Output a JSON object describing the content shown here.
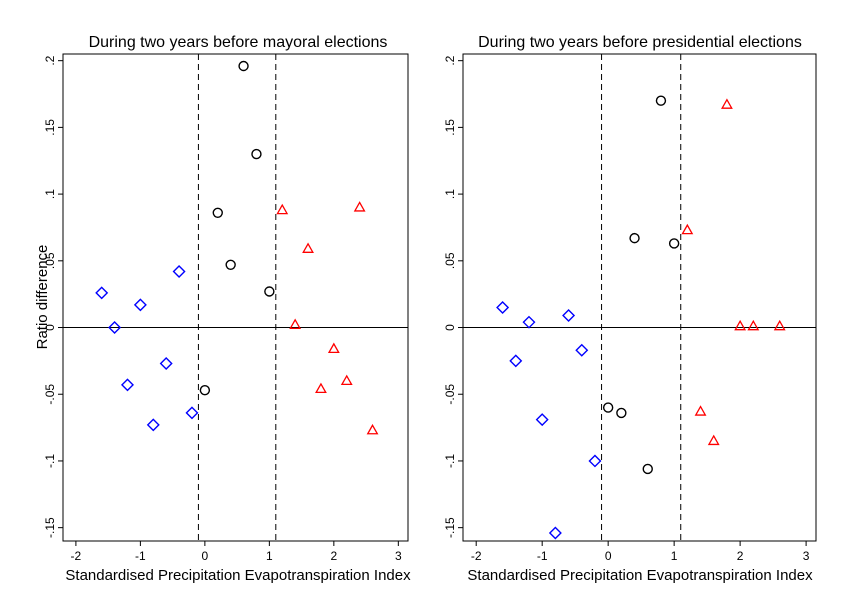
{
  "chart_data": [
    {
      "type": "scatter",
      "title": "During two years before mayoral elections",
      "xlabel": "Standardised Precipitation Evapotranspiration Index",
      "ylabel": "Ratio difference",
      "xlim": [
        -2.2,
        3.15
      ],
      "ylim": [
        -0.16,
        0.205
      ],
      "x_ticks": [
        -2,
        -1,
        0,
        1,
        2,
        3
      ],
      "x_tick_labels": [
        "-2",
        "-1",
        "0",
        "1",
        "2",
        "3"
      ],
      "y_ticks": [
        0.2,
        0.15,
        0.1,
        0.05,
        0,
        -0.05,
        -0.1,
        -0.15
      ],
      "y_tick_labels": [
        ".2",
        ".15",
        ".1",
        ".05",
        "0",
        "-.05",
        "-.1",
        "-.15"
      ],
      "hline": 0,
      "vlines": [
        -0.1,
        1.1
      ],
      "grid": false,
      "legend": "none",
      "series": [
        {
          "marker": "diamond",
          "color": "#0000ff",
          "points": [
            {
              "x": -1.6,
              "y": 0.026
            },
            {
              "x": -1.4,
              "y": 0.0
            },
            {
              "x": -1.2,
              "y": -0.043
            },
            {
              "x": -1.0,
              "y": 0.017
            },
            {
              "x": -0.8,
              "y": -0.073
            },
            {
              "x": -0.6,
              "y": -0.027
            },
            {
              "x": -0.4,
              "y": 0.042
            },
            {
              "x": -0.2,
              "y": -0.064
            }
          ]
        },
        {
          "marker": "circle",
          "color": "#000000",
          "points": [
            {
              "x": 0.0,
              "y": -0.047
            },
            {
              "x": 0.2,
              "y": 0.086
            },
            {
              "x": 0.4,
              "y": 0.047
            },
            {
              "x": 0.6,
              "y": 0.196
            },
            {
              "x": 0.8,
              "y": 0.13
            },
            {
              "x": 1.0,
              "y": 0.027
            }
          ]
        },
        {
          "marker": "triangle",
          "color": "#ff0000",
          "points": [
            {
              "x": 1.2,
              "y": 0.088
            },
            {
              "x": 1.4,
              "y": 0.002
            },
            {
              "x": 1.6,
              "y": 0.059
            },
            {
              "x": 1.8,
              "y": -0.046
            },
            {
              "x": 2.0,
              "y": -0.016
            },
            {
              "x": 2.2,
              "y": -0.04
            },
            {
              "x": 2.4,
              "y": 0.09
            },
            {
              "x": 2.6,
              "y": -0.077
            }
          ]
        }
      ]
    },
    {
      "type": "scatter",
      "title": "During two years before presidential elections",
      "xlabel": "Standardised Precipitation Evapotranspiration Index",
      "ylabel": "",
      "xlim": [
        -2.2,
        3.15
      ],
      "ylim": [
        -0.16,
        0.205
      ],
      "x_ticks": [
        -2,
        -1,
        0,
        1,
        2,
        3
      ],
      "x_tick_labels": [
        "-2",
        "-1",
        "0",
        "1",
        "2",
        "3"
      ],
      "y_ticks": [
        0.2,
        0.15,
        0.1,
        0.05,
        0,
        -0.05,
        -0.1,
        -0.15
      ],
      "y_tick_labels": [
        ".2",
        ".15",
        ".1",
        ".05",
        "0",
        "-.05",
        "-.1",
        "-.15"
      ],
      "hline": 0,
      "vlines": [
        -0.1,
        1.1
      ],
      "grid": false,
      "legend": "none",
      "series": [
        {
          "marker": "diamond",
          "color": "#0000ff",
          "points": [
            {
              "x": -1.6,
              "y": 0.015
            },
            {
              "x": -1.4,
              "y": -0.025
            },
            {
              "x": -1.2,
              "y": 0.004
            },
            {
              "x": -1.0,
              "y": -0.069
            },
            {
              "x": -0.8,
              "y": -0.154
            },
            {
              "x": -0.6,
              "y": 0.009
            },
            {
              "x": -0.4,
              "y": -0.017
            },
            {
              "x": -0.2,
              "y": -0.1
            }
          ]
        },
        {
          "marker": "circle",
          "color": "#000000",
          "points": [
            {
              "x": 0.0,
              "y": -0.06
            },
            {
              "x": 0.2,
              "y": -0.064
            },
            {
              "x": 0.4,
              "y": 0.067
            },
            {
              "x": 0.6,
              "y": -0.106
            },
            {
              "x": 0.8,
              "y": 0.17
            },
            {
              "x": 1.0,
              "y": 0.063
            }
          ]
        },
        {
          "marker": "triangle",
          "color": "#ff0000",
          "points": [
            {
              "x": 1.2,
              "y": 0.073
            },
            {
              "x": 1.4,
              "y": -0.063
            },
            {
              "x": 1.6,
              "y": -0.085
            },
            {
              "x": 1.8,
              "y": 0.167
            },
            {
              "x": 2.0,
              "y": 0.001
            },
            {
              "x": 2.2,
              "y": 0.001
            },
            {
              "x": 2.6,
              "y": 0.001
            }
          ]
        }
      ]
    }
  ]
}
